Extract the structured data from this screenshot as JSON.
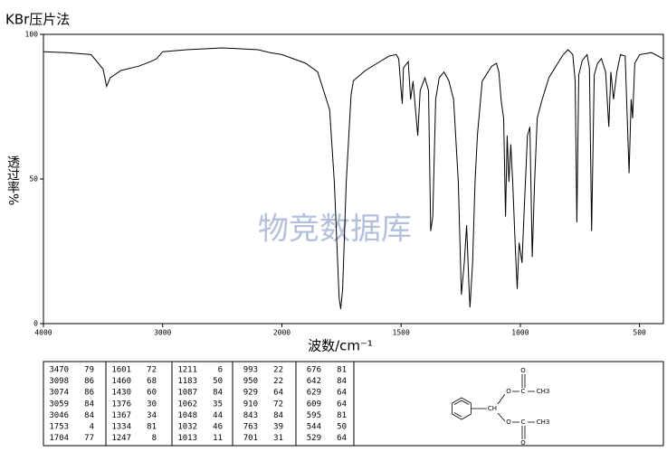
{
  "chart_data": {
    "type": "line",
    "method": "KBr压片法",
    "watermark": "物竞数据库",
    "x_label": "波数/cm⁻¹",
    "y_label": "透过率%",
    "xlim": [
      4000,
      400
    ],
    "x_scale_change": {
      "at": 2000,
      "factor": 2
    },
    "ylim": [
      0,
      100
    ],
    "xticks": [
      4000,
      3000,
      2000,
      1500,
      1000,
      500
    ],
    "yticks": [
      0,
      50,
      100
    ],
    "color": "#000000",
    "x": [
      4000,
      3800,
      3600,
      3500,
      3470,
      3440,
      3350,
      3200,
      3100,
      3050,
      3000,
      2800,
      2500,
      2200,
      2100,
      2000,
      1900,
      1850,
      1800,
      1780,
      1760,
      1753,
      1745,
      1730,
      1710,
      1700,
      1650,
      1600,
      1550,
      1520,
      1510,
      1500,
      1495,
      1490,
      1470,
      1460,
      1450,
      1430,
      1420,
      1400,
      1385,
      1376,
      1367,
      1355,
      1340,
      1320,
      1300,
      1280,
      1260,
      1247,
      1235,
      1225,
      1215,
      1211,
      1200,
      1190,
      1180,
      1160,
      1120,
      1100,
      1090,
      1080,
      1070,
      1062,
      1055,
      1048,
      1040,
      1032,
      1020,
      1013,
      1005,
      993,
      985,
      970,
      960,
      950,
      940,
      929,
      910,
      880,
      843,
      820,
      800,
      780,
      770,
      763,
      755,
      740,
      720,
      710,
      701,
      690,
      676,
      660,
      642,
      629,
      620,
      609,
      595,
      580,
      560,
      544,
      535,
      529,
      520,
      500,
      450,
      400
    ],
    "values": [
      94,
      93.7,
      93,
      88,
      82,
      85,
      87.5,
      89,
      90.6,
      91.6,
      94,
      94.7,
      95.3,
      94.7,
      93.7,
      93,
      90,
      87,
      74,
      49,
      9,
      5,
      12,
      49,
      79,
      84,
      87.5,
      90,
      92.5,
      93,
      91.5,
      80.6,
      76,
      88.4,
      90.6,
      77.5,
      83.8,
      65,
      80.6,
      85,
      80.6,
      32,
      37,
      77.5,
      85,
      87,
      84,
      77.5,
      49,
      10,
      21,
      34,
      12,
      5.6,
      21,
      49,
      65,
      83.8,
      89,
      90,
      87,
      77,
      71,
      37,
      65,
      49,
      62,
      49,
      24,
      12,
      28,
      21,
      37,
      65,
      68,
      23,
      49,
      71,
      77,
      85,
      90,
      93,
      94.7,
      93,
      84,
      35,
      86,
      91,
      93,
      88.4,
      32,
      86,
      90,
      91.6,
      87,
      68,
      87,
      77.5,
      87,
      93,
      92.5,
      52,
      77.5,
      71,
      90,
      93,
      93.7,
      91.5
    ]
  },
  "peak_table": [
    [
      [
        3470,
        79
      ],
      [
        3098,
        86
      ],
      [
        3074,
        86
      ],
      [
        3059,
        84
      ],
      [
        3046,
        84
      ],
      [
        1753,
        4
      ],
      [
        1704,
        77
      ]
    ],
    [
      [
        1601,
        72
      ],
      [
        1460,
        68
      ],
      [
        1430,
        60
      ],
      [
        1376,
        30
      ],
      [
        1367,
        34
      ],
      [
        1334,
        81
      ],
      [
        1247,
        8
      ]
    ],
    [
      [
        1211,
        6
      ],
      [
        1183,
        50
      ],
      [
        1087,
        84
      ],
      [
        1062,
        35
      ],
      [
        1048,
        44
      ],
      [
        1032,
        46
      ],
      [
        1013,
        11
      ]
    ],
    [
      [
        993,
        22
      ],
      [
        950,
        22
      ],
      [
        929,
        64
      ],
      [
        910,
        72
      ],
      [
        843,
        84
      ],
      [
        763,
        39
      ],
      [
        701,
        31
      ]
    ],
    [
      [
        676,
        81
      ],
      [
        642,
        84
      ],
      [
        629,
        64
      ],
      [
        609,
        64
      ],
      [
        595,
        81
      ],
      [
        544,
        50
      ],
      [
        529,
        64
      ]
    ]
  ],
  "structure": {
    "atoms": [
      "CH",
      "O",
      "C",
      "O",
      "CH3",
      "O",
      "C",
      "O",
      "CH3"
    ]
  }
}
